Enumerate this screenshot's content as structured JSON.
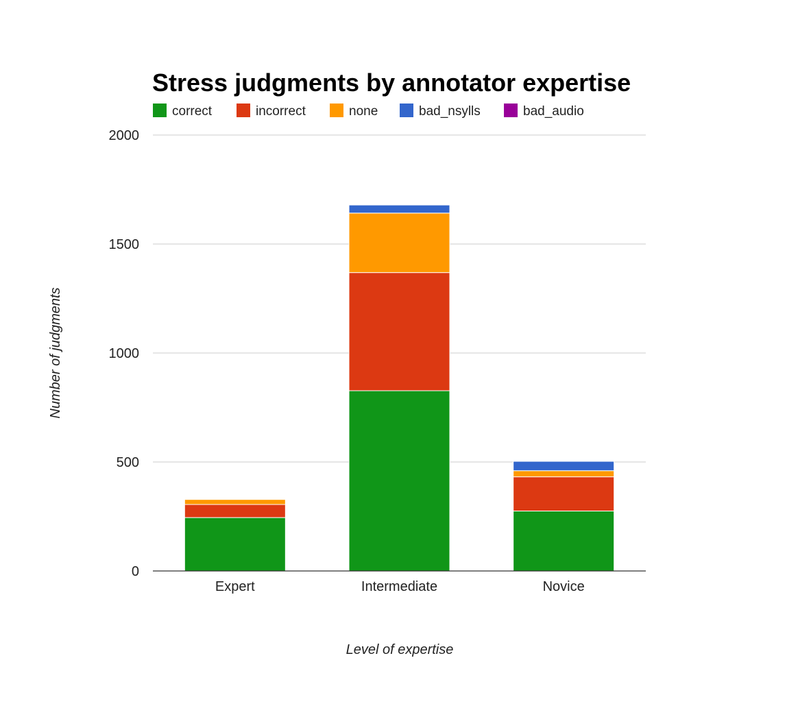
{
  "chart_data": {
    "type": "bar",
    "stacked": true,
    "title": "Stress judgments by annotator expertise",
    "xlabel": "Level of expertise",
    "ylabel": "Number of judgments",
    "ylim": [
      0,
      2000
    ],
    "yticks": [
      0,
      500,
      1000,
      1500,
      2000
    ],
    "grid": true,
    "legend_position": "top",
    "categories": [
      "Expert",
      "Intermediate",
      "Novice"
    ],
    "series": [
      {
        "name": "correct",
        "color": "#109618",
        "values": [
          245,
          827,
          275
        ]
      },
      {
        "name": "incorrect",
        "color": "#dc3912",
        "values": [
          60,
          542,
          157
        ]
      },
      {
        "name": "none",
        "color": "#ff9900",
        "values": [
          23,
          273,
          28
        ]
      },
      {
        "name": "bad_nsylls",
        "color": "#3366cc",
        "values": [
          0,
          37,
          43
        ]
      },
      {
        "name": "bad_audio",
        "color": "#990099",
        "values": [
          0,
          0,
          0
        ]
      }
    ]
  }
}
